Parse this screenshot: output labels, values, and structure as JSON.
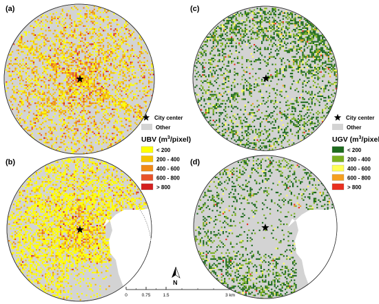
{
  "colors": {
    "other": "#d3d3d3",
    "map_outline": "#333333",
    "star": "#000000",
    "ubv": [
      "#ffff00",
      "#f5c400",
      "#f08a18",
      "#e8532a",
      "#d42020"
    ],
    "ugv": [
      "#1e6b1e",
      "#7ab020",
      "#ffff55",
      "#f5a020",
      "#e83020"
    ]
  },
  "panels": {
    "a": {
      "label": "(a)",
      "variable": "UBV",
      "period": "top"
    },
    "b": {
      "label": "(b)",
      "variable": "UBV",
      "period": "bottom"
    },
    "c": {
      "label": "(c)",
      "variable": "UGV",
      "period": "top"
    },
    "d": {
      "label": "(d)",
      "variable": "UGV",
      "period": "bottom"
    }
  },
  "legend_left": {
    "city_center": "City center",
    "other": "Other",
    "title_main": "UBV (m",
    "title_sup": "3",
    "title_end": "/pixel)",
    "classes": [
      "< 200",
      "200 - 400",
      "400 - 600",
      "600 - 800",
      "> 800"
    ]
  },
  "legend_right": {
    "city_center": "City center",
    "other": "Other",
    "title_main": "UGV (m",
    "title_sup": "3",
    "title_end": "/pixel)",
    "classes": [
      "< 200",
      "200 - 400",
      "400 - 600",
      "600 - 800",
      "> 800"
    ]
  },
  "scale_bar": {
    "ticks": [
      "0",
      "0.75",
      "1.5",
      "3 km"
    ]
  },
  "north_arrow": {
    "label": "N"
  }
}
